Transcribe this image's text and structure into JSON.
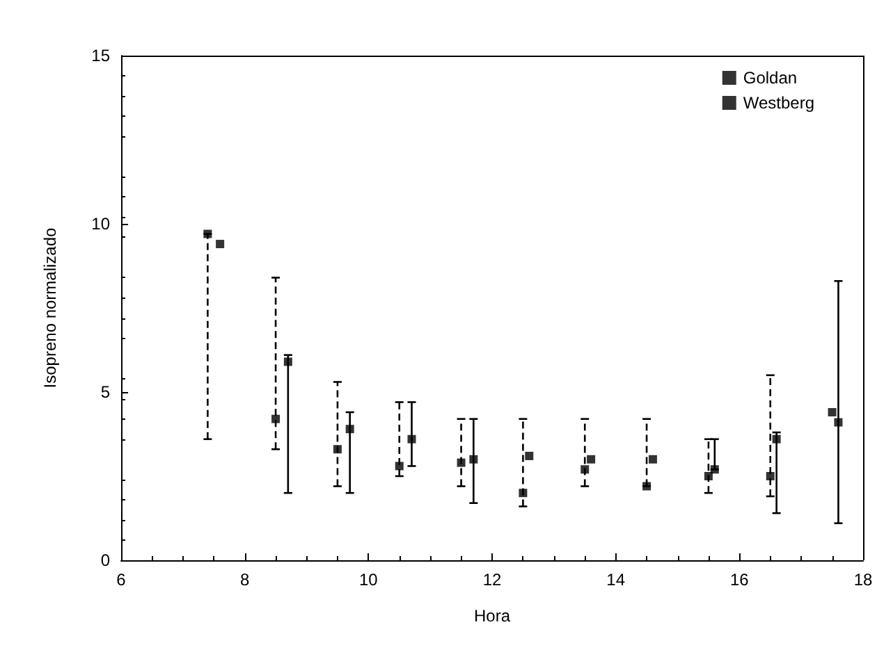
{
  "chart_data": {
    "type": "scatter",
    "xlabel": "Hora",
    "ylabel": "Isopreno normalizado",
    "xlim": [
      6,
      18
    ],
    "xticks": [
      6,
      8,
      10,
      12,
      14,
      16,
      18
    ],
    "ylim": [
      0,
      15
    ],
    "yticks": [
      0,
      5,
      10,
      15
    ],
    "grid": false,
    "legend": "top right",
    "marker": "square",
    "series": [
      {
        "name": "Goldan",
        "color": "#000000",
        "line_style": "solid",
        "x": [
          7.6,
          8.7,
          9.7,
          10.7,
          11.7,
          12.6,
          13.6,
          14.6,
          15.6,
          16.6,
          17.6
        ],
        "values": [
          9.4,
          5.9,
          3.9,
          3.6,
          3.0,
          3.1,
          3.0,
          3.0,
          2.7,
          3.6,
          4.1
        ],
        "errors": [
          null,
          [
            2.0,
            6.1
          ],
          [
            2.0,
            4.4
          ],
          [
            2.8,
            4.7
          ],
          [
            1.7,
            4.2
          ],
          null,
          null,
          null,
          [
            2.7,
            3.6
          ],
          [
            1.4,
            3.8
          ],
          [
            1.1,
            8.3
          ]
        ]
      },
      {
        "name": "Westberg",
        "color": "#000000",
        "line_style": "dashed",
        "x": [
          7.4,
          8.5,
          9.5,
          10.5,
          11.5,
          12.5,
          13.5,
          14.5,
          15.5,
          16.5,
          17.5
        ],
        "values": [
          9.7,
          4.2,
          3.3,
          2.8,
          2.9,
          2.0,
          2.7,
          2.2,
          2.5,
          2.5,
          4.4
        ],
        "errors": [
          [
            3.6,
            9.7
          ],
          [
            3.3,
            8.4
          ],
          [
            2.2,
            5.3
          ],
          [
            2.5,
            4.7
          ],
          [
            2.2,
            4.2
          ],
          [
            1.6,
            4.2
          ],
          [
            2.2,
            4.2
          ],
          [
            2.2,
            4.2
          ],
          [
            2.0,
            3.6
          ],
          [
            1.9,
            5.5
          ],
          null
        ]
      }
    ]
  }
}
